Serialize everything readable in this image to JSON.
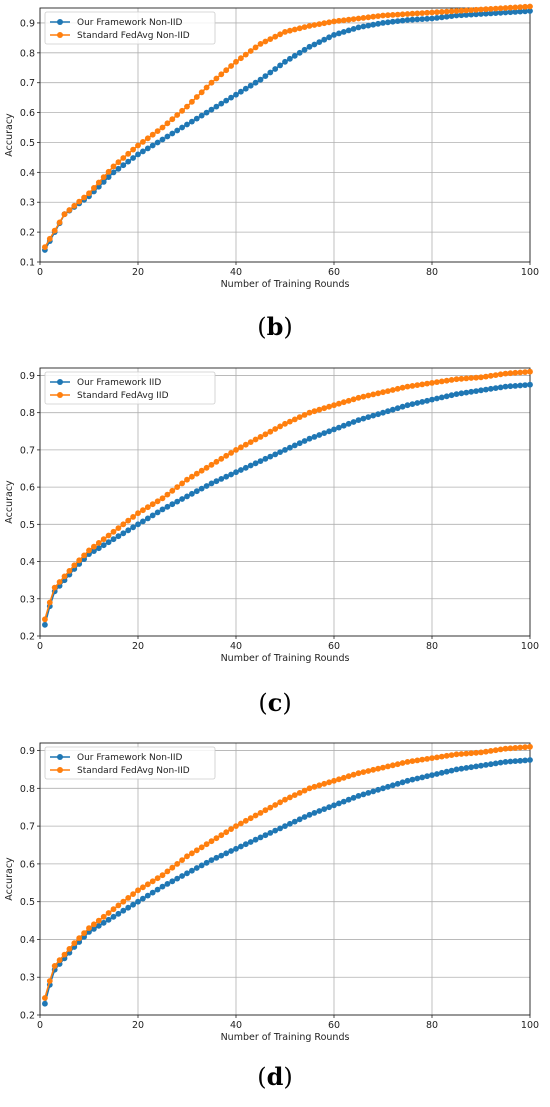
{
  "chart_data": [
    {
      "type": "line",
      "panel_label": "b",
      "xlabel": "Number of Training Rounds",
      "ylabel": "Accuracy",
      "xlim": [
        0,
        100
      ],
      "ylim": [
        0.1,
        0.95
      ],
      "xticks": [
        0,
        20,
        40,
        60,
        80,
        100
      ],
      "yticks": [
        0.1,
        0.2,
        0.3,
        0.4,
        0.5,
        0.6,
        0.7,
        0.8,
        0.9
      ],
      "grid": true,
      "legend": "top-left",
      "series": [
        {
          "name": "Our Framework Non-IID",
          "color": "#1f77b4",
          "x": [
            1,
            5,
            10,
            15,
            20,
            25,
            30,
            35,
            40,
            45,
            50,
            55,
            60,
            65,
            70,
            75,
            80,
            85,
            90,
            95,
            100
          ],
          "y": [
            0.14,
            0.26,
            0.32,
            0.4,
            0.46,
            0.51,
            0.56,
            0.61,
            0.66,
            0.71,
            0.77,
            0.82,
            0.86,
            0.885,
            0.9,
            0.91,
            0.915,
            0.925,
            0.93,
            0.935,
            0.94
          ]
        },
        {
          "name": "Standard FedAvg Non-IID",
          "color": "#ff7f0e",
          "x": [
            1,
            5,
            10,
            15,
            20,
            25,
            30,
            35,
            40,
            45,
            50,
            55,
            60,
            65,
            70,
            75,
            80,
            85,
            90,
            95,
            100
          ],
          "y": [
            0.15,
            0.26,
            0.33,
            0.42,
            0.49,
            0.55,
            0.62,
            0.7,
            0.77,
            0.83,
            0.87,
            0.89,
            0.905,
            0.915,
            0.925,
            0.93,
            0.935,
            0.94,
            0.945,
            0.95,
            0.955
          ]
        }
      ]
    },
    {
      "type": "line",
      "panel_label": "c",
      "xlabel": "Number of Training Rounds",
      "ylabel": "Accuracy",
      "xlim": [
        0,
        100
      ],
      "ylim": [
        0.2,
        0.92
      ],
      "xticks": [
        0,
        20,
        40,
        60,
        80,
        100
      ],
      "yticks": [
        0.2,
        0.3,
        0.4,
        0.5,
        0.6,
        0.7,
        0.8,
        0.9
      ],
      "grid": true,
      "legend": "top-left",
      "series": [
        {
          "name": "Our Framework IID",
          "color": "#1f77b4",
          "x": [
            1,
            2,
            3,
            5,
            7,
            10,
            15,
            20,
            25,
            30,
            35,
            40,
            45,
            50,
            55,
            60,
            65,
            70,
            75,
            80,
            85,
            90,
            95,
            100
          ],
          "y": [
            0.23,
            0.28,
            0.32,
            0.35,
            0.38,
            0.42,
            0.46,
            0.5,
            0.54,
            0.575,
            0.61,
            0.64,
            0.67,
            0.7,
            0.73,
            0.755,
            0.78,
            0.8,
            0.82,
            0.835,
            0.85,
            0.86,
            0.87,
            0.875
          ]
        },
        {
          "name": "Standard FedAvg IID",
          "color": "#ff7f0e",
          "x": [
            1,
            2,
            3,
            5,
            7,
            10,
            15,
            20,
            25,
            30,
            35,
            40,
            45,
            50,
            55,
            60,
            65,
            70,
            75,
            80,
            85,
            90,
            95,
            100
          ],
          "y": [
            0.245,
            0.29,
            0.33,
            0.36,
            0.39,
            0.43,
            0.48,
            0.53,
            0.57,
            0.62,
            0.66,
            0.7,
            0.735,
            0.77,
            0.8,
            0.82,
            0.84,
            0.855,
            0.87,
            0.88,
            0.89,
            0.895,
            0.905,
            0.91
          ]
        }
      ]
    },
    {
      "type": "line",
      "panel_label": "d",
      "xlabel": "Number of Training Rounds",
      "ylabel": "Accuracy",
      "xlim": [
        0,
        100
      ],
      "ylim": [
        0.2,
        0.92
      ],
      "xticks": [
        0,
        20,
        40,
        60,
        80,
        100
      ],
      "yticks": [
        0.2,
        0.3,
        0.4,
        0.5,
        0.6,
        0.7,
        0.8,
        0.9
      ],
      "grid": true,
      "legend": "top-left",
      "series": [
        {
          "name": "Our Framework Non-IID",
          "color": "#1f77b4",
          "x": [
            1,
            2,
            3,
            5,
            7,
            10,
            15,
            20,
            25,
            30,
            35,
            40,
            45,
            50,
            55,
            60,
            65,
            70,
            75,
            80,
            85,
            90,
            95,
            100
          ],
          "y": [
            0.23,
            0.28,
            0.32,
            0.35,
            0.38,
            0.42,
            0.46,
            0.5,
            0.54,
            0.575,
            0.61,
            0.64,
            0.67,
            0.7,
            0.73,
            0.755,
            0.78,
            0.8,
            0.82,
            0.835,
            0.85,
            0.86,
            0.87,
            0.875
          ]
        },
        {
          "name": "Standard FedAvg Non-IID",
          "color": "#ff7f0e",
          "x": [
            1,
            2,
            3,
            5,
            7,
            10,
            15,
            20,
            25,
            30,
            35,
            40,
            45,
            50,
            55,
            60,
            65,
            70,
            75,
            80,
            85,
            90,
            95,
            100
          ],
          "y": [
            0.245,
            0.29,
            0.33,
            0.36,
            0.39,
            0.43,
            0.48,
            0.53,
            0.57,
            0.62,
            0.66,
            0.7,
            0.735,
            0.77,
            0.8,
            0.82,
            0.84,
            0.855,
            0.87,
            0.88,
            0.89,
            0.895,
            0.905,
            0.91
          ]
        }
      ]
    }
  ],
  "captions": {
    "b": {
      "open": "(",
      "letter": "b",
      "close": ")"
    },
    "c": {
      "open": "(",
      "letter": "c",
      "close": ")"
    },
    "d": {
      "open": "(",
      "letter": "d",
      "close": ")"
    }
  }
}
